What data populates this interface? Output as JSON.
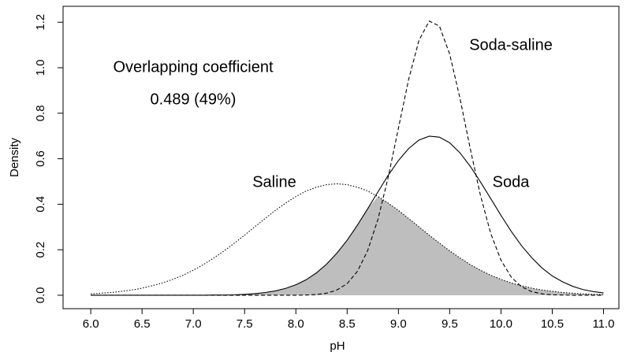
{
  "chart_data": {
    "type": "density",
    "xlabel": "pH",
    "ylabel": "Density",
    "annotations": [
      "Overlapping coefficient",
      "0.489 (49%)"
    ],
    "x": [
      6.0,
      6.1,
      6.2,
      6.3,
      6.4,
      6.5,
      6.6,
      6.7,
      6.8,
      6.9,
      7.0,
      7.1,
      7.2,
      7.3,
      7.4,
      7.5,
      7.6,
      7.7,
      7.8,
      7.9,
      8.0,
      8.1,
      8.2,
      8.3,
      8.4,
      8.5,
      8.6,
      8.7,
      8.8,
      8.9,
      9.0,
      9.1,
      9.2,
      9.3,
      9.4,
      9.5,
      9.6,
      9.7,
      9.8,
      9.9,
      10.0,
      10.1,
      10.2,
      10.3,
      10.4,
      10.5,
      10.6,
      10.7,
      10.8,
      10.9,
      11.0
    ],
    "series": [
      {
        "name": "Saline",
        "color": "#000000",
        "style": "dotted",
        "values": [
          0.006,
          0.009,
          0.012,
          0.017,
          0.023,
          0.031,
          0.042,
          0.054,
          0.07,
          0.088,
          0.11,
          0.135,
          0.164,
          0.195,
          0.229,
          0.264,
          0.301,
          0.337,
          0.373,
          0.405,
          0.434,
          0.458,
          0.475,
          0.486,
          0.49,
          0.486,
          0.475,
          0.458,
          0.434,
          0.405,
          0.373,
          0.337,
          0.301,
          0.264,
          0.229,
          0.195,
          0.164,
          0.135,
          0.11,
          0.088,
          0.07,
          0.054,
          0.042,
          0.031,
          0.023,
          0.017,
          0.012,
          0.009,
          0.006,
          0.004,
          0.003
        ]
      },
      {
        "name": "Soda",
        "color": "#000000",
        "style": "solid",
        "values": [
          0,
          0,
          0,
          0,
          0,
          0,
          0,
          0,
          0,
          0,
          0,
          0,
          0.001,
          0.001,
          0.002,
          0.004,
          0.007,
          0.012,
          0.019,
          0.03,
          0.046,
          0.068,
          0.098,
          0.137,
          0.185,
          0.242,
          0.308,
          0.38,
          0.454,
          0.527,
          0.592,
          0.645,
          0.682,
          0.699,
          0.695,
          0.67,
          0.626,
          0.567,
          0.498,
          0.425,
          0.351,
          0.281,
          0.218,
          0.165,
          0.12,
          0.085,
          0.059,
          0.039,
          0.025,
          0.016,
          0.01
        ]
      },
      {
        "name": "Soda-saline",
        "color": "#000000",
        "style": "dashed",
        "values": [
          0,
          0,
          0,
          0,
          0,
          0,
          0,
          0,
          0,
          0,
          0,
          0,
          0,
          0,
          0,
          0,
          0,
          0,
          0,
          0,
          0,
          0.001,
          0.003,
          0.009,
          0.023,
          0.051,
          0.105,
          0.196,
          0.333,
          0.518,
          0.734,
          0.949,
          1.12,
          1.205,
          1.183,
          1.06,
          0.866,
          0.645,
          0.439,
          0.272,
          0.154,
          0.08,
          0.037,
          0.016,
          0.006,
          0.002,
          0.001,
          0,
          0,
          0,
          0
        ]
      }
    ],
    "overlap_color": "#bebebe",
    "xlim": [
      5.73,
      11.15
    ],
    "xticks": [
      {
        "value": 6.0,
        "label": "6.0"
      },
      6.5,
      {
        "value": 7.0,
        "label": "7.0"
      },
      7.5,
      {
        "value": 8.0,
        "label": "8.0"
      },
      8.5,
      {
        "value": 9.0,
        "label": "9.0"
      },
      9.5,
      {
        "value": 10.0,
        "label": "10.0"
      },
      10.5,
      {
        "value": 11.0,
        "label": "11.0"
      }
    ],
    "ylim": [
      -0.059,
      1.27
    ],
    "yticks": [
      {
        "value": 0,
        "label": "0.0"
      },
      0.2,
      0.4,
      0.6,
      0.8,
      {
        "value": 1,
        "label": "1.0"
      },
      1.2
    ]
  }
}
